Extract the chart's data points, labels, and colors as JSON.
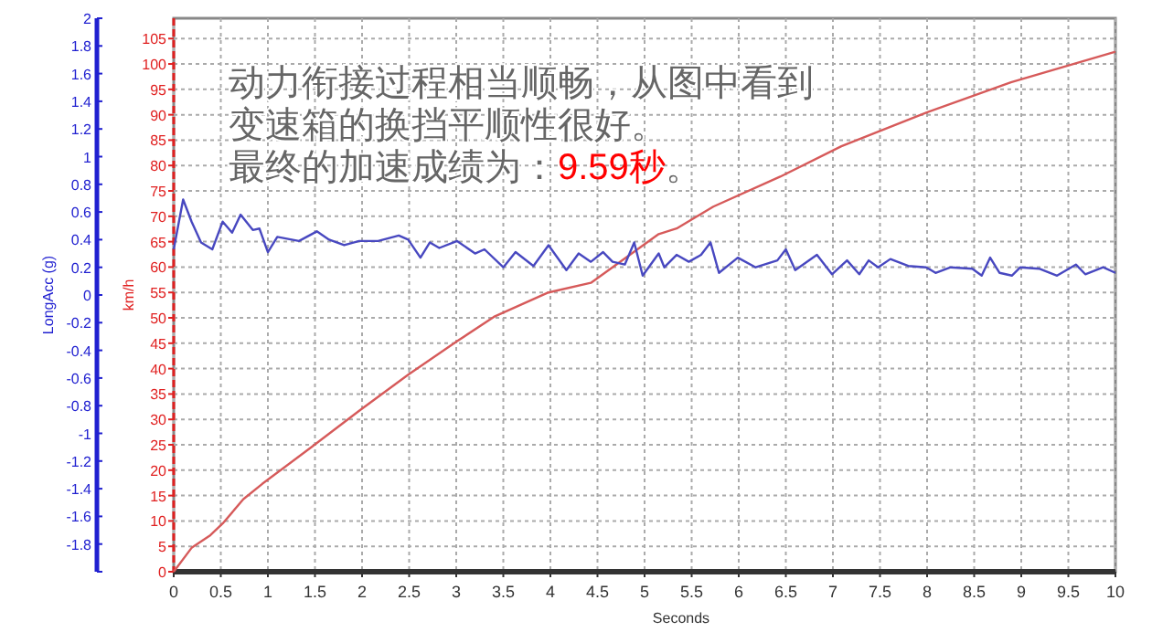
{
  "chart_data": {
    "type": "line",
    "xlabel": "Seconds",
    "ylabel": "km/h",
    "y2label": "LongAcc (g)",
    "annotations": [
      "动力衔接过程相当顺畅，从图中看到",
      "变速箱的换挡平顺性很好。",
      "最终的加速成绩为：",
      "9.59秒",
      "。"
    ],
    "xlim": [
      0,
      10
    ],
    "xticks": [
      0,
      0.5,
      1,
      1.5,
      2,
      2.5,
      3,
      3.5,
      4,
      4.5,
      5,
      5.5,
      6,
      6.5,
      7,
      7.5,
      8,
      8.5,
      9,
      9.5,
      10
    ],
    "ylim": [
      0,
      109
    ],
    "yticks": [
      0,
      5,
      10,
      15,
      20,
      25,
      30,
      35,
      40,
      45,
      50,
      55,
      60,
      65,
      70,
      75,
      80,
      85,
      90,
      95,
      100,
      105
    ],
    "y2lim": [
      -2,
      2
    ],
    "y2ticks": [
      {
        "value": -2,
        "label": null
      },
      -1.8,
      -1.6,
      -1.4,
      -1.2,
      -1,
      -0.8,
      -0.6,
      -0.4,
      -0.2,
      0,
      0.2,
      0.4,
      0.6,
      0.8,
      1,
      1.2,
      1.4,
      1.6,
      1.8,
      2
    ],
    "grid": true,
    "marker": "none",
    "line_style": "solid",
    "series": [
      {
        "color": "#d65a5a",
        "x": [
          0,
          0.19,
          0.39,
          0.52,
          0.74,
          0.94,
          1.46,
          1.97,
          2.49,
          3.01,
          3.4,
          3.98,
          4.43,
          5.15,
          5.34,
          5.73,
          6.44,
          7.09,
          7.99,
          8.89,
          10
        ],
        "values": [
          0,
          4.7,
          7.2,
          9.5,
          14.3,
          17.3,
          24.5,
          31.7,
          38.8,
          45.4,
          50.2,
          55,
          56.9,
          66.5,
          67.6,
          71.9,
          77.8,
          83.8,
          90.4,
          96.4,
          102.4
        ]
      },
      {
        "color": "#4848c0",
        "axis": "y2",
        "x": [
          0,
          0.1,
          0.19,
          0.29,
          0.41,
          0.52,
          0.62,
          0.71,
          0.84,
          0.91,
          1,
          1.1,
          1.33,
          1.52,
          1.65,
          1.81,
          1.97,
          2.17,
          2.39,
          2.49,
          2.62,
          2.72,
          2.82,
          3.01,
          3.2,
          3.3,
          3.5,
          3.63,
          3.82,
          3.98,
          4.17,
          4.3,
          4.43,
          4.56,
          4.66,
          4.79,
          4.89,
          4.98,
          5.15,
          5.21,
          5.34,
          5.47,
          5.6,
          5.7,
          5.79,
          5.99,
          6.18,
          6.41,
          6.5,
          6.6,
          6.83,
          6.99,
          7.15,
          7.28,
          7.38,
          7.48,
          7.61,
          7.8,
          7.99,
          8.09,
          8.25,
          8.48,
          8.58,
          8.67,
          8.77,
          8.9,
          8.99,
          9.19,
          9.38,
          9.58,
          9.68,
          9.87,
          10
        ],
        "values": [
          0.33,
          0.69,
          0.53,
          0.38,
          0.33,
          0.53,
          0.45,
          0.58,
          0.47,
          0.48,
          0.31,
          0.42,
          0.39,
          0.46,
          0.4,
          0.36,
          0.39,
          0.39,
          0.43,
          0.4,
          0.27,
          0.38,
          0.34,
          0.39,
          0.3,
          0.33,
          0.2,
          0.31,
          0.21,
          0.36,
          0.18,
          0.3,
          0.24,
          0.31,
          0.24,
          0.22,
          0.38,
          0.14,
          0.3,
          0.2,
          0.29,
          0.24,
          0.29,
          0.38,
          0.16,
          0.27,
          0.2,
          0.25,
          0.33,
          0.18,
          0.29,
          0.15,
          0.25,
          0.15,
          0.25,
          0.2,
          0.26,
          0.21,
          0.2,
          0.16,
          0.2,
          0.19,
          0.14,
          0.27,
          0.16,
          0.14,
          0.2,
          0.19,
          0.14,
          0.22,
          0.15,
          0.2,
          0.16
        ]
      }
    ]
  }
}
